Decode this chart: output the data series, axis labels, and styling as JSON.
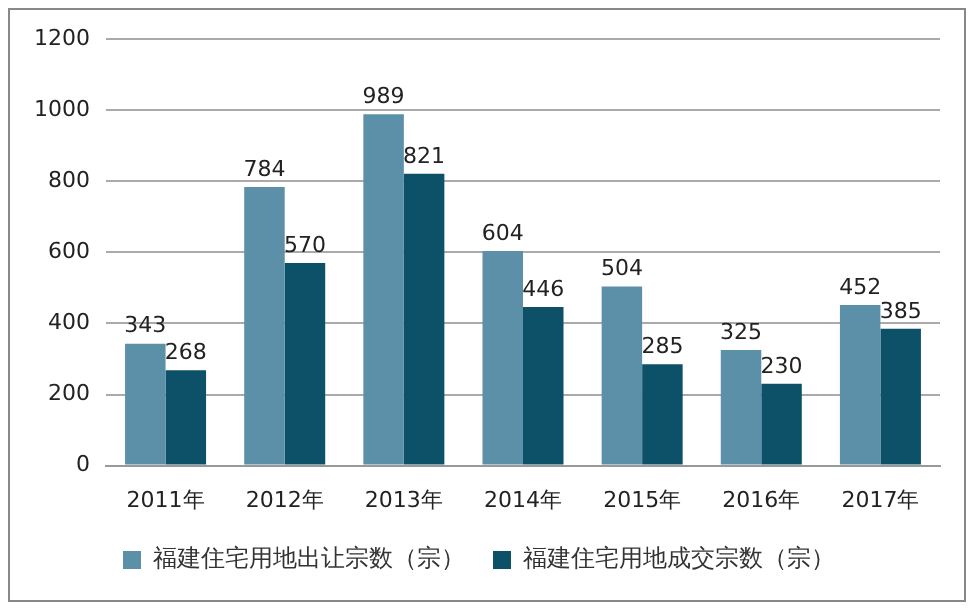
{
  "chart_data": {
    "type": "bar",
    "categories": [
      "2011年",
      "2012年",
      "2013年",
      "2014年",
      "2015年",
      "2016年",
      "2017年"
    ],
    "series": [
      {
        "name": "福建住宅用地出让宗数（宗）",
        "color": "#5b90a8",
        "values": [
          343,
          784,
          989,
          604,
          504,
          325,
          452
        ]
      },
      {
        "name": "福建住宅用地成交宗数（宗）",
        "color": "#0d5168",
        "values": [
          268,
          570,
          821,
          446,
          285,
          230,
          385
        ]
      }
    ],
    "ylim": [
      0,
      1200
    ],
    "yticks": [
      0,
      200,
      400,
      600,
      800,
      1000,
      1200
    ],
    "grid": "y",
    "legend": "bottom",
    "data_labels": true
  }
}
